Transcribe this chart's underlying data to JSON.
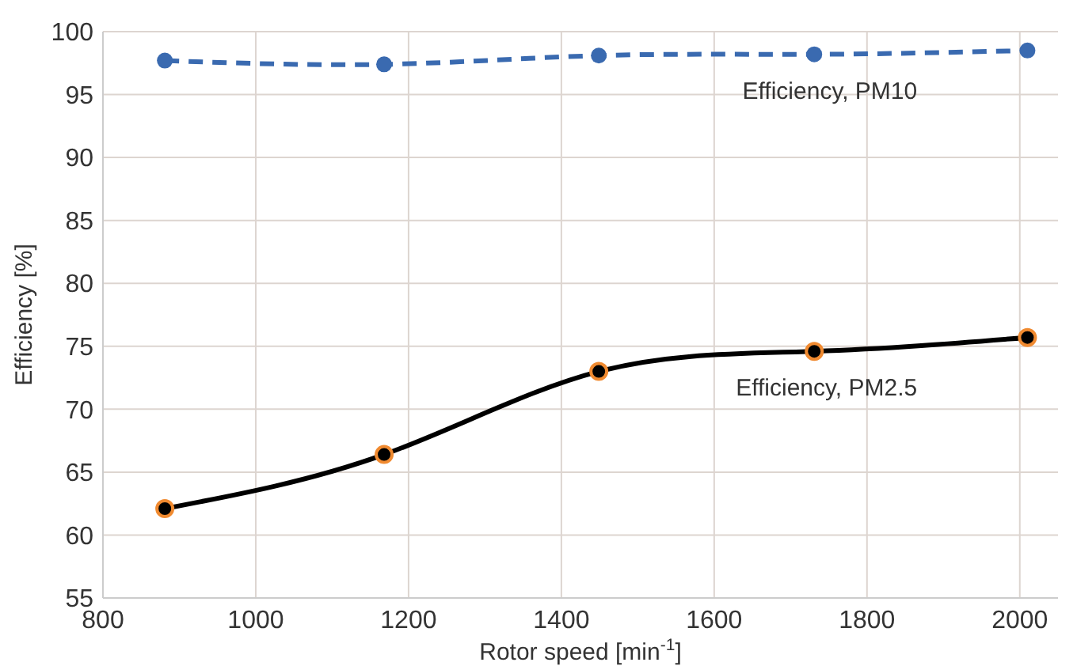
{
  "chart_data": {
    "type": "line",
    "xlabel": "Rotor speed [min$^{-1}$]",
    "ylabel": "Efficiency [%]",
    "x": [
      881,
      1168,
      1449,
      1731,
      2010
    ],
    "xlim": [
      800,
      2050
    ],
    "xticks": [
      800,
      1000,
      1200,
      1400,
      1600,
      1800,
      2000
    ],
    "ylim": [
      55,
      100
    ],
    "yticks": [
      55,
      60,
      65,
      70,
      75,
      80,
      85,
      90,
      95,
      100
    ],
    "grid": true,
    "marker": "circle",
    "series": [
      {
        "name": "Efficiency, PM10",
        "color": "#3a6ab0",
        "line_style": "dashed",
        "values": [
          97.7,
          97.4,
          98.1,
          98.2,
          98.5
        ]
      },
      {
        "name": "Efficiency, PM2.5",
        "color": "#000000",
        "line_style": "solid",
        "values": [
          62.1,
          66.4,
          73.0,
          74.6,
          75.7
        ]
      }
    ]
  }
}
